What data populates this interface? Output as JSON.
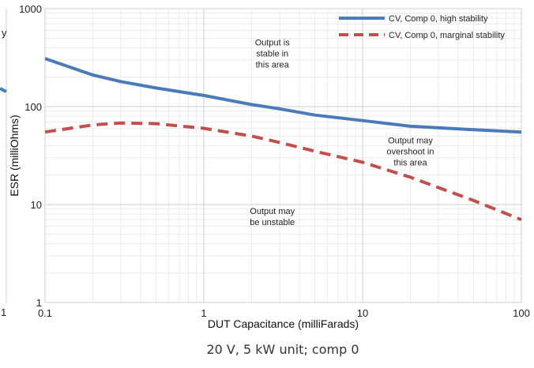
{
  "chart_data": {
    "type": "line",
    "title": "",
    "xlabel": "DUT Capacitance (milliFarads)",
    "ylabel": "ESR (milliOhms)",
    "xscale": "log",
    "yscale": "log",
    "xlim": [
      0.1,
      100
    ],
    "ylim": [
      1,
      1000
    ],
    "grid": true,
    "legend": "top-right",
    "x_ticks": [
      "0.1",
      "1",
      "10",
      "100"
    ],
    "y_ticks": [
      "1",
      "10",
      "100",
      "1000"
    ],
    "series": [
      {
        "name": "CV, Comp 0, high stability",
        "color": "#4a7ab8",
        "style": "solid",
        "x": [
          0.1,
          0.2,
          0.3,
          0.5,
          1,
          2,
          3,
          5,
          10,
          20,
          50,
          100
        ],
        "y": [
          310,
          210,
          180,
          155,
          130,
          105,
          95,
          82,
          72,
          63,
          58,
          55
        ]
      },
      {
        "name": "CV, Comp 0, marginal stability",
        "color": "#c0504d",
        "style": "dashed",
        "x": [
          0.1,
          0.2,
          0.3,
          0.5,
          1,
          2,
          3,
          5,
          10,
          20,
          50,
          100
        ],
        "y": [
          55,
          65,
          68,
          67,
          60,
          50,
          43,
          35,
          27,
          19,
          11,
          7
        ]
      }
    ],
    "annotations": [
      {
        "lines": [
          "Output is",
          "stable in",
          "this area"
        ],
        "x": 2.7,
        "y": 420
      },
      {
        "lines": [
          "Output may",
          "overshoot in",
          "this area"
        ],
        "x": 20,
        "y": 42
      },
      {
        "lines": [
          "Output may",
          "be unstable"
        ],
        "x": 2.7,
        "y": 8
      }
    ],
    "partial_left_labels": [
      "y",
      "1"
    ]
  },
  "caption": "20 V, 5 kW unit; comp 0"
}
